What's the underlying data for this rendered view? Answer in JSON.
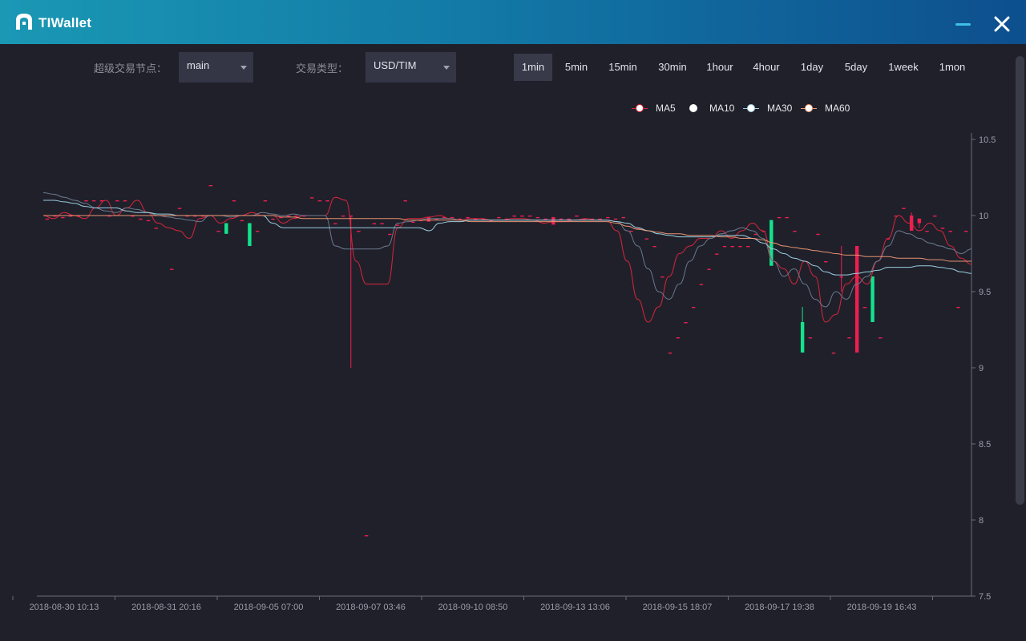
{
  "window": {
    "title": "TIWallet",
    "icons": {
      "logo": "wallet-logo-icon",
      "minimize": "minimize-icon",
      "close": "close-icon"
    }
  },
  "controls": {
    "node_label": "超级交易节点：",
    "node_value": "main",
    "pair_label": "交易类型：",
    "pair_value": "USD/TIM",
    "intervals": [
      {
        "label": "1min",
        "active": true
      },
      {
        "label": "5min",
        "active": false
      },
      {
        "label": "15min",
        "active": false
      },
      {
        "label": "30min",
        "active": false
      },
      {
        "label": "1hour",
        "active": false
      },
      {
        "label": "4hour",
        "active": false
      },
      {
        "label": "1day",
        "active": false
      },
      {
        "label": "5day",
        "active": false
      },
      {
        "label": "1week",
        "active": false
      },
      {
        "label": "1mon",
        "active": false
      }
    ]
  },
  "colors": {
    "up": "#ee1f4f",
    "down": "#12e38c",
    "ma5": "#e3263a",
    "ma10": "#6d7e90",
    "ma30": "#9fd6e6",
    "ma60": "#f09a74",
    "axis": "#6b6d78",
    "tick_text": "#9b9da8"
  },
  "chart_data": {
    "type": "candlestick",
    "legend": [
      "MA5",
      "MA10",
      "MA30",
      "MA60"
    ],
    "legend_position": "top-right",
    "grid": false,
    "x_ticks": [
      "2018-08-30 10:13",
      "2018-08-31 20:16",
      "2018-09-05 07:00",
      "2018-09-07 03:46",
      "2018-09-10 08:50",
      "2018-09-13 13:06",
      "2018-09-15 18:07",
      "2018-09-17 19:38",
      "2018-09-19 16:43"
    ],
    "y_ticks": [
      "7.5",
      "8",
      "8.5",
      "9",
      "9.5",
      "10",
      "10.5"
    ],
    "ylim": [
      7.5,
      10.5
    ],
    "candles": [
      {
        "o": 9.98,
        "c": 9.98,
        "h": 9.98,
        "l": 9.98
      },
      {
        "o": 10.0,
        "c": 10.0,
        "h": 10.0,
        "l": 10.0
      },
      {
        "o": 9.99,
        "c": 9.99,
        "h": 9.99,
        "l": 9.99
      },
      {
        "o": 10.0,
        "c": 10.0,
        "h": 10.0,
        "l": 10.0
      },
      {
        "o": 10.0,
        "c": 10.0,
        "h": 10.0,
        "l": 10.0
      },
      {
        "o": 10.1,
        "c": 10.1,
        "h": 10.1,
        "l": 10.1
      },
      {
        "o": 10.1,
        "c": 10.1,
        "h": 10.1,
        "l": 10.1
      },
      {
        "o": 10.1,
        "c": 10.1,
        "h": 10.1,
        "l": 10.1
      },
      {
        "o": 10.0,
        "c": 10.0,
        "h": 10.0,
        "l": 10.0
      },
      {
        "o": 10.1,
        "c": 10.1,
        "h": 10.1,
        "l": 10.1
      },
      {
        "o": 10.1,
        "c": 10.1,
        "h": 10.1,
        "l": 10.1
      },
      {
        "o": 10.0,
        "c": 10.0,
        "h": 10.0,
        "l": 10.0
      },
      {
        "o": 9.98,
        "c": 9.98,
        "h": 9.98,
        "l": 9.98
      },
      {
        "o": 9.97,
        "c": 9.97,
        "h": 9.97,
        "l": 9.97
      },
      {
        "o": 9.92,
        "c": 9.92,
        "h": 9.92,
        "l": 9.92
      },
      {
        "o": 10.0,
        "c": 10.0,
        "h": 10.0,
        "l": 10.0
      },
      {
        "o": 9.65,
        "c": 9.65,
        "h": 9.65,
        "l": 9.65
      },
      {
        "o": 10.05,
        "c": 10.05,
        "h": 10.05,
        "l": 10.05
      },
      {
        "o": 10.0,
        "c": 10.0,
        "h": 10.0,
        "l": 10.0
      },
      {
        "o": 10.0,
        "c": 10.0,
        "h": 10.0,
        "l": 10.0
      },
      {
        "o": 10.0,
        "c": 10.0,
        "h": 10.0,
        "l": 10.0
      },
      {
        "o": 10.2,
        "c": 10.2,
        "h": 10.2,
        "l": 10.2
      },
      {
        "o": 9.9,
        "c": 9.9,
        "h": 9.9,
        "l": 9.9
      },
      {
        "o": 9.95,
        "c": 9.88,
        "h": 9.95,
        "l": 9.88
      },
      {
        "o": 10.1,
        "c": 10.1,
        "h": 10.1,
        "l": 10.1
      },
      {
        "o": 9.97,
        "c": 9.97,
        "h": 9.97,
        "l": 9.97
      },
      {
        "o": 9.95,
        "c": 9.8,
        "h": 9.95,
        "l": 9.8
      },
      {
        "o": 9.9,
        "c": 9.9,
        "h": 9.9,
        "l": 9.9
      },
      {
        "o": 10.1,
        "c": 10.1,
        "h": 10.1,
        "l": 10.1
      },
      {
        "o": 9.98,
        "c": 9.98,
        "h": 9.98,
        "l": 9.98
      },
      {
        "o": 9.99,
        "c": 9.99,
        "h": 9.99,
        "l": 9.99
      },
      {
        "o": 10.0,
        "c": 10.0,
        "h": 10.0,
        "l": 10.0
      },
      {
        "o": 10.0,
        "c": 10.0,
        "h": 10.0,
        "l": 10.0
      },
      {
        "o": 10.0,
        "c": 10.0,
        "h": 10.0,
        "l": 10.0
      },
      {
        "o": 10.12,
        "c": 10.12,
        "h": 10.12,
        "l": 10.12
      },
      {
        "o": 10.1,
        "c": 10.1,
        "h": 10.1,
        "l": 10.1
      },
      {
        "o": 10.1,
        "c": 10.1,
        "h": 10.1,
        "l": 10.1
      },
      {
        "o": 9.95,
        "c": 9.95,
        "h": 9.95,
        "l": 9.95
      },
      {
        "o": 10.0,
        "c": 10.0,
        "h": 10.0,
        "l": 10.0
      },
      {
        "o": 10.0,
        "c": 10.0,
        "h": 10.0,
        "l": 9.0
      },
      {
        "o": 9.9,
        "c": 9.9,
        "h": 9.9,
        "l": 9.9
      },
      {
        "o": 7.9,
        "c": 7.9,
        "h": 7.9,
        "l": 7.9
      },
      {
        "o": 9.95,
        "c": 9.95,
        "h": 9.95,
        "l": 9.95
      },
      {
        "o": 9.95,
        "c": 9.95,
        "h": 9.95,
        "l": 9.95
      },
      {
        "o": 9.88,
        "c": 9.88,
        "h": 9.88,
        "l": 9.88
      },
      {
        "o": 9.94,
        "c": 9.94,
        "h": 9.94,
        "l": 9.94
      },
      {
        "o": 10.1,
        "c": 10.1,
        "h": 10.1,
        "l": 10.1
      },
      {
        "o": 9.96,
        "c": 9.96,
        "h": 9.96,
        "l": 9.96
      },
      {
        "o": 9.97,
        "c": 9.97,
        "h": 9.97,
        "l": 9.97
      },
      {
        "o": 9.96,
        "c": 9.99,
        "h": 9.99,
        "l": 9.96
      },
      {
        "o": 9.98,
        "c": 9.98,
        "h": 9.98,
        "l": 9.98
      },
      {
        "o": 9.99,
        "c": 9.99,
        "h": 9.99,
        "l": 9.99
      },
      {
        "o": 9.99,
        "c": 9.99,
        "h": 9.99,
        "l": 9.99
      },
      {
        "o": 9.98,
        "c": 9.98,
        "h": 9.98,
        "l": 9.98
      },
      {
        "o": 9.99,
        "c": 9.99,
        "h": 9.99,
        "l": 9.99
      },
      {
        "o": 9.98,
        "c": 9.98,
        "h": 9.98,
        "l": 9.98
      },
      {
        "o": 9.98,
        "c": 9.98,
        "h": 9.98,
        "l": 9.98
      },
      {
        "o": 9.97,
        "c": 9.97,
        "h": 9.97,
        "l": 9.97
      },
      {
        "o": 9.99,
        "c": 9.99,
        "h": 9.99,
        "l": 9.99
      },
      {
        "o": 9.98,
        "c": 9.98,
        "h": 9.98,
        "l": 9.98
      },
      {
        "o": 10.0,
        "c": 10.0,
        "h": 10.0,
        "l": 10.0
      },
      {
        "o": 10.0,
        "c": 10.0,
        "h": 10.0,
        "l": 10.0
      },
      {
        "o": 10.0,
        "c": 10.0,
        "h": 10.0,
        "l": 10.0
      },
      {
        "o": 9.99,
        "c": 9.99,
        "h": 9.99,
        "l": 9.99
      },
      {
        "o": 9.98,
        "c": 9.98,
        "h": 9.98,
        "l": 9.98
      },
      {
        "o": 9.94,
        "c": 9.99,
        "h": 9.99,
        "l": 9.94
      },
      {
        "o": 9.98,
        "c": 9.98,
        "h": 9.98,
        "l": 9.98
      },
      {
        "o": 9.98,
        "c": 9.98,
        "h": 9.98,
        "l": 9.98
      },
      {
        "o": 10.0,
        "c": 10.0,
        "h": 10.0,
        "l": 10.0
      },
      {
        "o": 9.98,
        "c": 9.98,
        "h": 9.98,
        "l": 9.98
      },
      {
        "o": 9.98,
        "c": 9.98,
        "h": 9.98,
        "l": 9.98
      },
      {
        "o": 9.98,
        "c": 9.98,
        "h": 9.98,
        "l": 9.98
      },
      {
        "o": 9.99,
        "c": 9.99,
        "h": 9.99,
        "l": 9.99
      },
      {
        "o": 9.98,
        "c": 9.98,
        "h": 9.98,
        "l": 9.98
      },
      {
        "o": 9.99,
        "c": 9.99,
        "h": 9.99,
        "l": 9.99
      },
      {
        "o": 9.9,
        "c": 9.9,
        "h": 9.9,
        "l": 9.9
      },
      {
        "o": 9.92,
        "c": 9.92,
        "h": 9.92,
        "l": 9.92
      },
      {
        "o": 9.85,
        "c": 9.85,
        "h": 9.85,
        "l": 9.85
      },
      {
        "o": 9.8,
        "c": 9.8,
        "h": 9.8,
        "l": 9.8
      },
      {
        "o": 9.6,
        "c": 9.6,
        "h": 9.6,
        "l": 9.6
      },
      {
        "o": 9.1,
        "c": 9.1,
        "h": 9.1,
        "l": 9.1
      },
      {
        "o": 9.2,
        "c": 9.2,
        "h": 9.2,
        "l": 9.2
      },
      {
        "o": 9.3,
        "c": 9.3,
        "h": 9.3,
        "l": 9.3
      },
      {
        "o": 9.4,
        "c": 9.4,
        "h": 9.4,
        "l": 9.4
      },
      {
        "o": 9.55,
        "c": 9.55,
        "h": 9.55,
        "l": 9.55
      },
      {
        "o": 9.65,
        "c": 9.65,
        "h": 9.65,
        "l": 9.65
      },
      {
        "o": 9.75,
        "c": 9.75,
        "h": 9.75,
        "l": 9.75
      },
      {
        "o": 9.8,
        "c": 9.8,
        "h": 9.8,
        "l": 9.8
      },
      {
        "o": 9.8,
        "c": 9.8,
        "h": 9.8,
        "l": 9.8
      },
      {
        "o": 9.8,
        "c": 9.8,
        "h": 9.8,
        "l": 9.8
      },
      {
        "o": 9.8,
        "c": 9.8,
        "h": 9.8,
        "l": 9.8
      },
      {
        "o": 9.88,
        "c": 9.88,
        "h": 9.88,
        "l": 9.88
      },
      {
        "o": 9.9,
        "c": 9.9,
        "h": 9.9,
        "l": 9.9
      },
      {
        "o": 9.97,
        "c": 9.67,
        "h": 9.97,
        "l": 9.67
      },
      {
        "o": 9.99,
        "c": 9.99,
        "h": 9.99,
        "l": 9.99
      },
      {
        "o": 9.99,
        "c": 9.99,
        "h": 9.99,
        "l": 9.99
      },
      {
        "o": 9.9,
        "c": 9.9,
        "h": 9.9,
        "l": 9.9
      },
      {
        "o": 9.3,
        "c": 9.1,
        "h": 9.4,
        "l": 9.1
      },
      {
        "o": 9.2,
        "c": 9.2,
        "h": 9.2,
        "l": 9.2
      },
      {
        "o": 9.88,
        "c": 9.88,
        "h": 9.88,
        "l": 9.88
      },
      {
        "o": 9.7,
        "c": 9.7,
        "h": 9.7,
        "l": 9.7
      },
      {
        "o": 9.1,
        "c": 9.1,
        "h": 9.1,
        "l": 9.1
      },
      {
        "o": 9.6,
        "c": 9.6,
        "h": 9.8,
        "l": 9.5
      },
      {
        "o": 9.2,
        "c": 9.2,
        "h": 9.2,
        "l": 9.2
      },
      {
        "o": 9.1,
        "c": 9.8,
        "h": 9.8,
        "l": 9.1
      },
      {
        "o": 9.4,
        "c": 9.4,
        "h": 9.4,
        "l": 9.4
      },
      {
        "o": 9.6,
        "c": 9.3,
        "h": 9.6,
        "l": 9.3
      },
      {
        "o": 9.2,
        "c": 9.2,
        "h": 9.2,
        "l": 9.2
      },
      {
        "o": 9.85,
        "c": 9.85,
        "h": 9.85,
        "l": 9.85
      },
      {
        "o": 10.0,
        "c": 10.0,
        "h": 10.0,
        "l": 10.0
      },
      {
        "o": 10.05,
        "c": 10.05,
        "h": 10.05,
        "l": 10.05
      },
      {
        "o": 9.9,
        "c": 10.0,
        "h": 10.02,
        "l": 9.9
      },
      {
        "o": 9.95,
        "c": 9.98,
        "h": 9.98,
        "l": 9.92
      },
      {
        "o": 9.9,
        "c": 9.9,
        "h": 9.9,
        "l": 9.9
      },
      {
        "o": 10.0,
        "c": 10.0,
        "h": 10.0,
        "l": 10.0
      },
      {
        "o": 9.92,
        "c": 9.92,
        "h": 9.92,
        "l": 9.92
      },
      {
        "o": 9.9,
        "c": 9.9,
        "h": 9.9,
        "l": 9.9
      },
      {
        "o": 9.4,
        "c": 9.4,
        "h": 9.4,
        "l": 9.4
      },
      {
        "o": 9.9,
        "c": 9.9,
        "h": 9.9,
        "l": 9.9
      }
    ],
    "ma": {
      "MA5": [
        10.0,
        9.98,
        10.02,
        10.0,
        9.98,
        10.05,
        10.1,
        10.0,
        10.05,
        10.1,
        10.02,
        9.95,
        9.92,
        9.9,
        9.85,
        9.98,
        10.0,
        9.95,
        9.98,
        10.0,
        10.02,
        10.0,
        10.0,
        9.95,
        9.98,
        10.0,
        10.0,
        10.0,
        10.12,
        10.1,
        9.7,
        9.55,
        9.55,
        9.55,
        9.92,
        9.98,
        9.98,
        9.99,
        10.0,
        9.98,
        9.97,
        9.98,
        9.98,
        9.97,
        9.97,
        9.98,
        9.98,
        9.97,
        9.95,
        9.96,
        9.96,
        9.97,
        9.98,
        9.97,
        9.97,
        9.9,
        9.7,
        9.45,
        9.3,
        9.4,
        9.6,
        9.75,
        9.8,
        9.85,
        9.85,
        9.9,
        9.85,
        9.9,
        9.95,
        9.9,
        9.7,
        9.65,
        9.55,
        9.7,
        9.6,
        9.3,
        9.35,
        9.55,
        9.6,
        9.55,
        9.7,
        9.85,
        10.0,
        9.95,
        9.9,
        9.95,
        9.9,
        9.8,
        9.72,
        9.68
      ],
      "MA10": [
        10.15,
        10.14,
        10.12,
        10.1,
        10.08,
        10.05,
        10.03,
        10.02,
        10.05,
        10.04,
        10.02,
        10.0,
        9.99,
        9.98,
        9.97,
        9.96,
        10.0,
        10.0,
        9.99,
        10.0,
        10.0,
        10.02,
        10.01,
        10.0,
        10.01,
        10.0,
        10.0,
        10.0,
        9.8,
        9.78,
        9.78,
        9.78,
        9.78,
        9.8,
        9.95,
        9.96,
        9.97,
        9.98,
        9.98,
        9.98,
        9.97,
        9.97,
        9.97,
        9.97,
        9.97,
        9.97,
        9.97,
        9.97,
        9.97,
        9.97,
        9.97,
        9.97,
        9.97,
        9.97,
        9.97,
        9.96,
        9.9,
        9.8,
        9.65,
        9.5,
        9.45,
        9.55,
        9.7,
        9.8,
        9.85,
        9.88,
        9.9,
        9.92,
        9.9,
        9.85,
        9.7,
        9.6,
        9.65,
        9.55,
        9.45,
        9.4,
        9.5,
        9.45,
        9.55,
        9.6,
        9.7,
        9.8,
        9.9,
        9.88,
        9.85,
        9.82,
        9.8,
        9.78,
        9.75,
        9.78
      ],
      "MA30": [
        10.1,
        10.1,
        10.09,
        10.08,
        10.06,
        10.05,
        10.05,
        10.05,
        10.03,
        10.02,
        10.02,
        10.01,
        10.01,
        10.0,
        10.0,
        10.0,
        10.0,
        10.0,
        10.0,
        10.0,
        10.0,
        10.0,
        9.95,
        9.92,
        9.92,
        9.92,
        9.92,
        9.92,
        9.92,
        9.92,
        9.92,
        9.92,
        9.92,
        9.92,
        9.92,
        9.92,
        9.92,
        9.9,
        9.95,
        9.96,
        9.96,
        9.97,
        9.97,
        9.97,
        9.97,
        9.97,
        9.97,
        9.97,
        9.97,
        9.97,
        9.97,
        9.97,
        9.97,
        9.97,
        9.97,
        9.96,
        9.95,
        9.92,
        9.9,
        9.88,
        9.87,
        9.86,
        9.86,
        9.86,
        9.86,
        9.87,
        9.87,
        9.87,
        9.85,
        9.82,
        9.78,
        9.75,
        9.72,
        9.7,
        9.67,
        9.63,
        9.61,
        9.61,
        9.62,
        9.63,
        9.64,
        9.66,
        9.66,
        9.66,
        9.67,
        9.67,
        9.66,
        9.65,
        9.63,
        9.62
      ],
      "MA60": [
        10.0,
        10.0,
        10.0,
        10.0,
        10.0,
        10.0,
        10.0,
        10.0,
        10.0,
        10.0,
        10.0,
        10.0,
        10.0,
        10.0,
        10.0,
        10.0,
        10.0,
        10.0,
        10.0,
        10.0,
        10.0,
        10.0,
        10.0,
        9.99,
        9.99,
        9.98,
        9.98,
        9.98,
        9.98,
        9.98,
        9.98,
        9.98,
        9.98,
        9.98,
        9.98,
        9.97,
        9.97,
        9.97,
        9.97,
        9.97,
        9.97,
        9.96,
        9.96,
        9.96,
        9.96,
        9.96,
        9.96,
        9.96,
        9.96,
        9.96,
        9.96,
        9.96,
        9.96,
        9.96,
        9.96,
        9.95,
        9.93,
        9.91,
        9.9,
        9.89,
        9.88,
        9.88,
        9.87,
        9.87,
        9.87,
        9.86,
        9.86,
        9.85,
        9.85,
        9.84,
        9.82,
        9.8,
        9.79,
        9.78,
        9.77,
        9.76,
        9.75,
        9.74,
        9.74,
        9.73,
        9.73,
        9.73,
        9.72,
        9.72,
        9.72,
        9.71,
        9.71,
        9.7,
        9.7,
        9.7
      ]
    }
  }
}
